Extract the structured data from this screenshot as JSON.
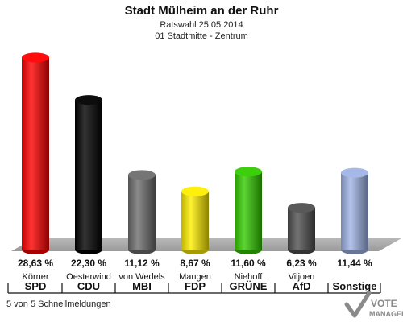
{
  "chart_data": {
    "type": "bar",
    "title": "Stadt Mülheim an der Ruhr",
    "subtitle_1": "Ratswahl 25.05.2014",
    "subtitle_2": "01 Stadtmitte - Zentrum",
    "categories": [
      "SPD",
      "CDU",
      "MBI",
      "FDP",
      "GRÜNE",
      "AfD",
      "Sonstige"
    ],
    "candidates": [
      "Körner",
      "Oesterwind",
      "von Wedels",
      "Mangen",
      "Niehoff",
      "Viljoen",
      ""
    ],
    "values": [
      28.63,
      22.3,
      11.12,
      8.67,
      11.6,
      6.23,
      11.44
    ],
    "value_labels": [
      "28,63 %",
      "22,30 %",
      "11,12 %",
      "8,67 %",
      "11,60 %",
      "6,23 %",
      "11,44 %"
    ],
    "colors": [
      "#ff0000",
      "#000000",
      "#6e6e6e",
      "#ffee00",
      "#33cc00",
      "#505050",
      "#a0b4e6"
    ],
    "ylim": [
      0,
      30
    ],
    "grid": false,
    "footer": "5 von 5 Schnellmeldungen",
    "logo": {
      "line1": "VOTE",
      "line2": "MANAGER"
    }
  }
}
